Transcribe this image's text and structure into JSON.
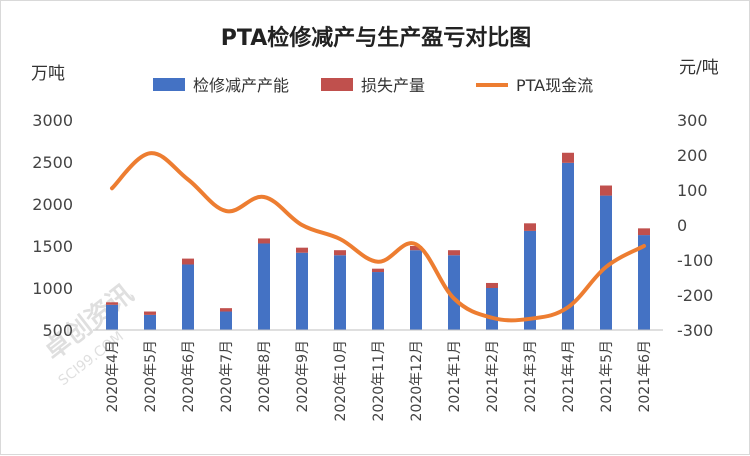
{
  "chart_data": {
    "type": "bar",
    "title": "PTA检修减产与生产盈亏对比图",
    "left_unit": "万吨",
    "right_unit": "元/吨",
    "categories": [
      "2020年4月",
      "2020年5月",
      "2020年6月",
      "2020年7月",
      "2020年8月",
      "2020年9月",
      "2020年10月",
      "2020年11月",
      "2020年12月",
      "2021年1月",
      "2021年2月",
      "2021年3月",
      "2021年4月",
      "2021年5月",
      "2021年6月"
    ],
    "ylim_left": [
      500,
      3000
    ],
    "yticks_left": [
      "500",
      "1000",
      "1500",
      "2000",
      "2500",
      "3000"
    ],
    "ylim_right": [
      -300,
      300
    ],
    "yticks_right": [
      "-300",
      "-200",
      "-100",
      "0",
      "100",
      "200",
      "300"
    ],
    "legend_position": "top",
    "series": [
      {
        "name": "检修减产产能",
        "kind": "bar",
        "stack": "a",
        "axis": "left",
        "color": "#4472C4",
        "values": [
          800,
          680,
          1280,
          720,
          1530,
          1420,
          1390,
          1190,
          1450,
          1390,
          1000,
          1680,
          2490,
          2100,
          1630
        ]
      },
      {
        "name": "损失产量",
        "kind": "bar",
        "stack": "a",
        "axis": "left",
        "color": "#C0504D",
        "values": [
          30,
          40,
          70,
          40,
          60,
          60,
          60,
          40,
          50,
          60,
          60,
          90,
          120,
          120,
          80
        ]
      },
      {
        "name": "PTA现金流",
        "kind": "line",
        "axis": "right",
        "color": "#ED7D31",
        "values": [
          105,
          205,
          130,
          40,
          80,
          0,
          -40,
          -105,
          -55,
          -210,
          -265,
          -268,
          -235,
          -120,
          -60
        ]
      }
    ],
    "watermark": "卓创资讯 SCI99.COM"
  }
}
